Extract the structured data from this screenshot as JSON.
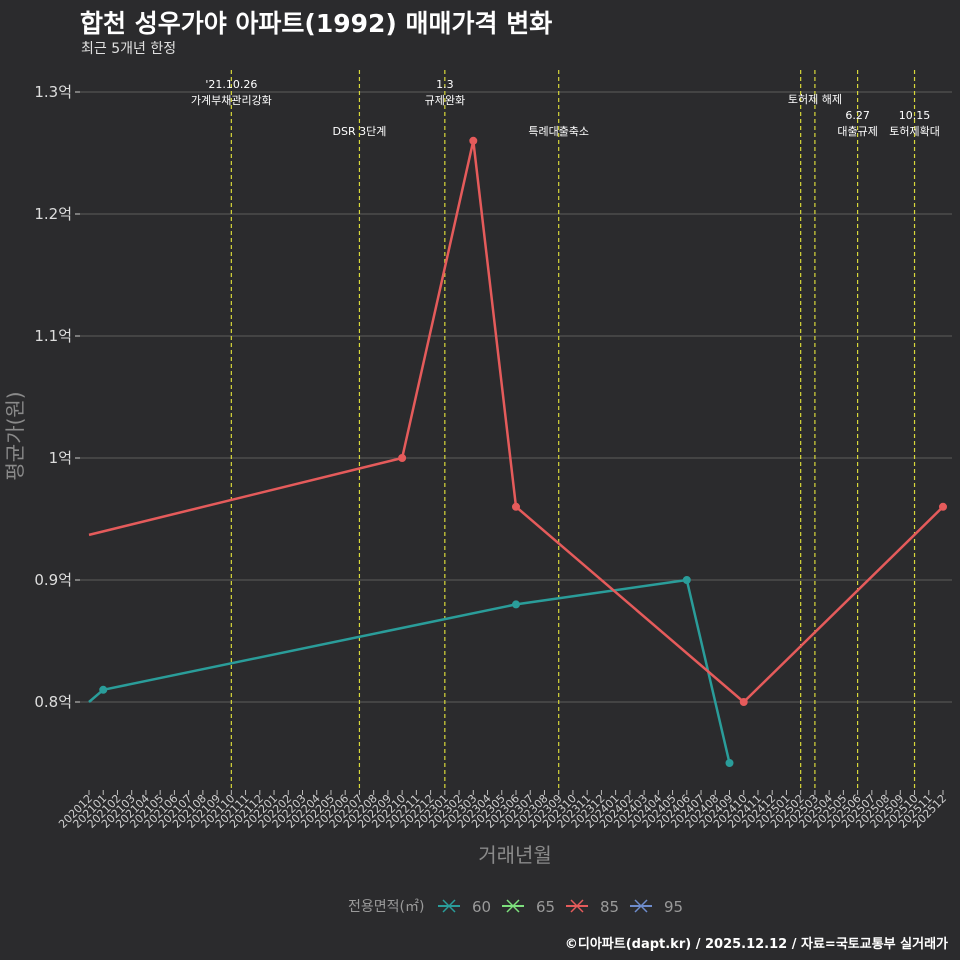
{
  "header": {
    "title": "합천 성우가야 아파트(1992) 매매가격 변화",
    "subtitle": "최근 5개년 한정"
  },
  "footer": {
    "credit": "©디아파트(dapt.kr) / 2025.12.12 / 자료=국토교통부 실거래가"
  },
  "colors": {
    "background": "#2b2b2d",
    "grid": "#5c5c5c",
    "policy_line": "#d8d83a",
    "series_60": "#2a9d9a",
    "series_65": "#7de07d",
    "series_85": "#e55b5b",
    "series_95": "#6e8ccc"
  },
  "chart_data": {
    "type": "line",
    "title": "합천 성우가야 아파트(1992) 매매가격 변화",
    "xlabel": "거래년월",
    "ylabel": "평균가(원)",
    "ylim": [
      0.725,
      1.32
    ],
    "y_ticks": [
      {
        "value": 0.8,
        "label": "0.8억"
      },
      {
        "value": 0.9,
        "label": "0.9억"
      },
      {
        "value": 1.0,
        "label": "1억"
      },
      {
        "value": 1.1,
        "label": "1.1억"
      },
      {
        "value": 1.2,
        "label": "1.2억"
      },
      {
        "value": 1.3,
        "label": "1.3억"
      }
    ],
    "x_categories": [
      "202012",
      "202101",
      "202102",
      "202103",
      "202104",
      "202105",
      "202106",
      "202107",
      "202108",
      "202109",
      "202110",
      "202111",
      "202112",
      "202201",
      "202202",
      "202203",
      "202204",
      "202205",
      "202206",
      "202207",
      "202208",
      "202209",
      "202210",
      "202211",
      "202212",
      "202301",
      "202302",
      "202303",
      "202304",
      "202305",
      "202306",
      "202307",
      "202308",
      "202309",
      "202310",
      "202311",
      "202312",
      "202401",
      "202402",
      "202403",
      "202404",
      "202405",
      "202406",
      "202407",
      "202408",
      "202409",
      "202410",
      "202411",
      "202412",
      "202501",
      "202502",
      "202503",
      "202504",
      "202505",
      "202506",
      "202507",
      "202508",
      "202509",
      "202510",
      "202511",
      "202512"
    ],
    "legend": {
      "title": "전용면적(㎡)",
      "position": "bottom",
      "entries": [
        "60",
        "65",
        "85",
        "95"
      ]
    },
    "series": [
      {
        "name": "60",
        "points": [
          {
            "x": "202012",
            "y": 0.8,
            "marker": false
          },
          {
            "x": "202101",
            "y": 0.81,
            "marker": true
          },
          {
            "x": "202306",
            "y": 0.88,
            "marker": true
          },
          {
            "x": "202406",
            "y": 0.9,
            "marker": true
          },
          {
            "x": "202409",
            "y": 0.75,
            "marker": true
          }
        ]
      },
      {
        "name": "85",
        "points": [
          {
            "x": "202012",
            "y": 0.937,
            "marker": false
          },
          {
            "x": "202210",
            "y": 1.0,
            "marker": true
          },
          {
            "x": "202303",
            "y": 1.26,
            "marker": true
          },
          {
            "x": "202306",
            "y": 0.96,
            "marker": true
          },
          {
            "x": "202410",
            "y": 0.8,
            "marker": true
          },
          {
            "x": "202512",
            "y": 0.96,
            "marker": true
          }
        ]
      }
    ],
    "annotations": [
      {
        "x": "202110",
        "lines": [
          "'21.10.26",
          "가계부채관리강화"
        ],
        "level": 1
      },
      {
        "x": "202207",
        "lines": [
          "DSR 3단계"
        ],
        "level": 3
      },
      {
        "x": "202301",
        "lines": [
          "1.3",
          "규제완화"
        ],
        "level": 1
      },
      {
        "x": "202309",
        "lines": [
          "특례대출축소"
        ],
        "level": 3
      },
      {
        "x": "202502",
        "lines": [],
        "level": 2
      },
      {
        "x": "202503",
        "lines": [
          "토허제 해제"
        ],
        "level": 2
      },
      {
        "x": "202506",
        "lines": [
          "6.27",
          "대출규제"
        ],
        "level": 4
      },
      {
        "x": "202510",
        "lines": [
          "10.15",
          "토허제확대"
        ],
        "level": 4
      }
    ]
  }
}
